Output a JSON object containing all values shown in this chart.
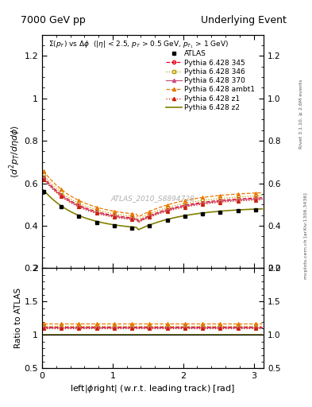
{
  "title_left": "7000 GeV pp",
  "title_right": "Underlying Event",
  "subtitle": "Σ(p_{T}) vs Δϕ  (|η| < 2.5, p_{T} > 0.5 GeV, p_{T_{1}} > 1 GeV)",
  "xlabel": "left|ϕright| (w.r.t. leading track) [rad]",
  "ylabel_main": "⟨d² p_T/dηdϕ⟩",
  "ylabel_ratio": "Ratio to ATLAS",
  "watermark": "ATLAS_2010_S8894728",
  "rivet_text": "Rivet 3.1.10, ≥ 2.6M events",
  "mcplots_text": "mcplots.cern.ch [arXiv:1306.3436]",
  "xlim": [
    0,
    3.14159
  ],
  "ylim_main": [
    0.2,
    1.3
  ],
  "ylim_ratio": [
    0.5,
    2.0
  ],
  "yticks_main": [
    0.2,
    0.4,
    0.6,
    0.8,
    1.0,
    1.2
  ],
  "yticks_ratio": [
    0.5,
    1.0,
    1.5,
    2.0
  ],
  "xticks": [
    0,
    1,
    2,
    3
  ],
  "bg_color": "#ffffff",
  "plot_bg": "#ffffff",
  "series": [
    {
      "label": "ATLAS",
      "color": "#000000",
      "marker": "s",
      "markersize": 3.5,
      "linestyle": "none",
      "linewidth": 0,
      "is_data": true
    },
    {
      "label": "Pythia 6.428 345",
      "color": "#e8001a",
      "marker": "o",
      "markersize": 3,
      "linestyle": "--",
      "linewidth": 0.9,
      "is_data": false
    },
    {
      "label": "Pythia 6.428 346",
      "color": "#b8a000",
      "marker": "s",
      "markersize": 3,
      "linestyle": ":",
      "linewidth": 0.9,
      "is_data": false
    },
    {
      "label": "Pythia 6.428 370",
      "color": "#cc5080",
      "marker": "^",
      "markersize": 3,
      "linestyle": "-",
      "linewidth": 0.9,
      "is_data": false
    },
    {
      "label": "Pythia 6.428 ambt1",
      "color": "#e87800",
      "marker": "^",
      "markersize": 3,
      "linestyle": "--",
      "linewidth": 0.9,
      "is_data": false
    },
    {
      "label": "Pythia 6.428 z1",
      "color": "#cc2000",
      "marker": "^",
      "markersize": 3,
      "linestyle": ":",
      "linewidth": 0.9,
      "is_data": false
    },
    {
      "label": "Pythia 6.428 z2",
      "color": "#808000",
      "marker": "",
      "markersize": 0,
      "linestyle": "-",
      "linewidth": 1.2,
      "is_data": false
    }
  ]
}
